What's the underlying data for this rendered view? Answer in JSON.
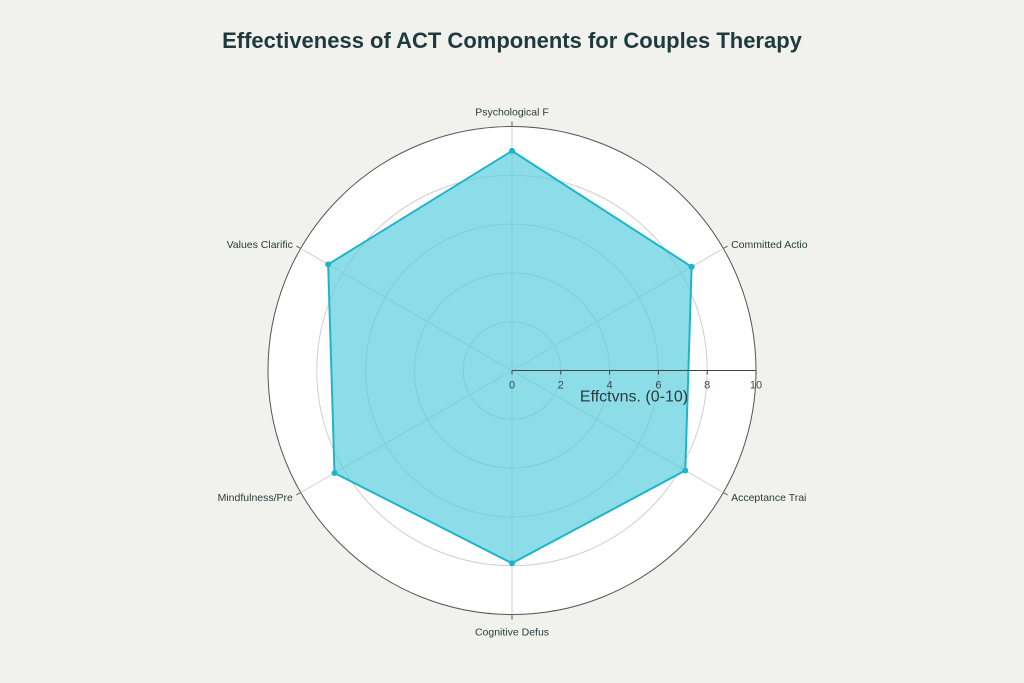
{
  "chart_data": {
    "type": "radar",
    "title": "Effectiveness of ACT Components for Couples Therapy",
    "categories": [
      "Psychological F",
      "Committed Actio",
      "Acceptance Trai",
      "Cognitive Defus",
      "Mindfulness/Pre",
      "Values Clarific"
    ],
    "values": [
      9.0,
      8.5,
      8.2,
      7.9,
      8.4,
      8.7
    ],
    "radial_axis": {
      "label": "Effctvns. (0-10)",
      "range": [
        0,
        10
      ],
      "ticks": [
        "0",
        "2",
        "4",
        "6",
        "8",
        "10"
      ]
    },
    "grid": true,
    "colors": {
      "fill": "#5ccfdf",
      "line": "#1fb5c9",
      "title": "#1f3a3c"
    }
  }
}
